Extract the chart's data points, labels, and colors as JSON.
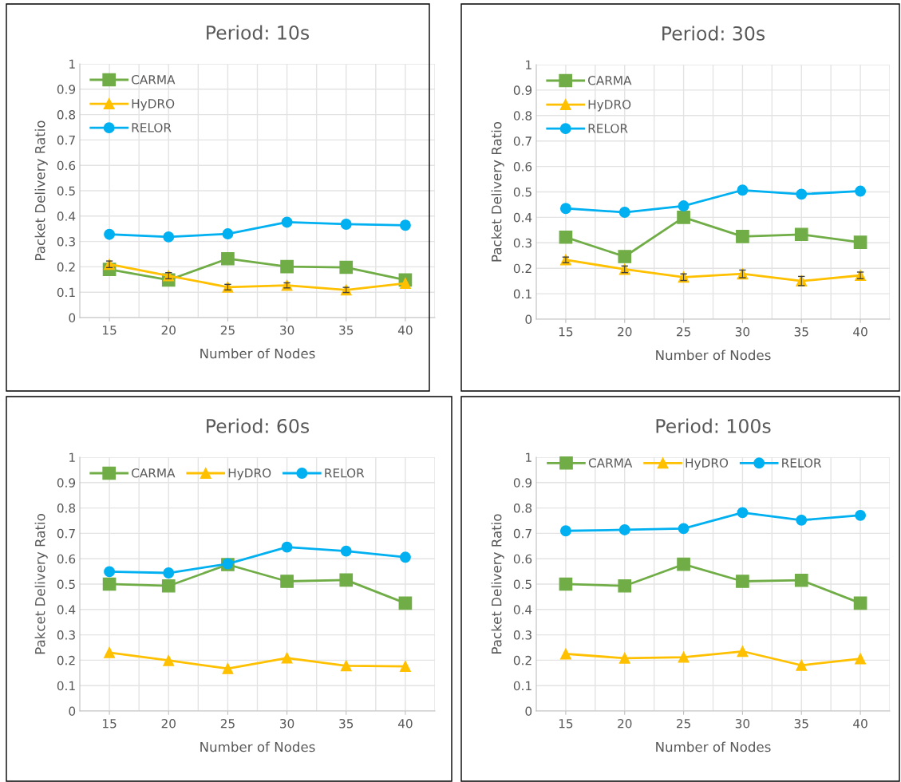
{
  "chart_data": [
    {
      "type": "line",
      "title": "Period: 10s",
      "xlabel": "Number of Nodes",
      "ylabel": "Packet Delivery Ratio",
      "categories": [
        "15",
        "20",
        "25",
        "30",
        "35",
        "40"
      ],
      "ylim": [
        0,
        1
      ],
      "yticks": [
        0,
        0.1,
        0.2,
        0.3,
        0.4,
        0.5,
        0.6,
        0.7,
        0.8,
        0.9,
        1
      ],
      "grid": true,
      "legend": "top left",
      "line_style": "solid",
      "series": [
        {
          "name": "CARMA",
          "color": "#70ad47",
          "marker": "square",
          "values": [
            0.19,
            0.148,
            0.232,
            0.201,
            0.198,
            0.148
          ]
        },
        {
          "name": "HyDRO",
          "color": "#ffc000",
          "marker": "triangle",
          "values": [
            0.21,
            0.165,
            0.12,
            0.127,
            0.109,
            0.135
          ],
          "errors": [
            0.013,
            0.012,
            0.011,
            0.01,
            0.01,
            null
          ]
        },
        {
          "name": "RELOR",
          "color": "#00b0f0",
          "marker": "circle",
          "values": [
            0.328,
            0.318,
            0.33,
            0.376,
            0.368,
            0.364
          ]
        }
      ]
    },
    {
      "type": "line",
      "title": "Period: 30s",
      "xlabel": "Number of Nodes",
      "ylabel": "Packet Delivery Ratio",
      "categories": [
        "15",
        "20",
        "25",
        "30",
        "35",
        "40"
      ],
      "ylim": [
        0,
        1
      ],
      "yticks": [
        0,
        0.1,
        0.2,
        0.3,
        0.4,
        0.5,
        0.6,
        0.7,
        0.8,
        0.9,
        1
      ],
      "grid": true,
      "legend": "top left",
      "line_style": "solid",
      "series": [
        {
          "name": "CARMA",
          "color": "#70ad47",
          "marker": "square",
          "values": [
            0.322,
            0.246,
            0.4,
            0.325,
            0.333,
            0.302
          ]
        },
        {
          "name": "HyDRO",
          "color": "#ffc000",
          "marker": "triangle",
          "values": [
            0.233,
            0.196,
            0.165,
            0.178,
            0.15,
            0.172
          ],
          "errors": [
            0.011,
            0.013,
            0.013,
            0.015,
            0.018,
            0.013
          ]
        },
        {
          "name": "RELOR",
          "color": "#00b0f0",
          "marker": "circle",
          "values": [
            0.435,
            0.42,
            0.445,
            0.507,
            0.491,
            0.503
          ]
        }
      ]
    },
    {
      "type": "line",
      "title": "Period: 60s",
      "xlabel": "Number of Nodes",
      "ylabel": "Pakcet Delivery Ratio",
      "categories": [
        "15",
        "20",
        "25",
        "30",
        "35",
        "40"
      ],
      "ylim": [
        0,
        1
      ],
      "yticks": [
        0,
        0.1,
        0.2,
        0.3,
        0.4,
        0.5,
        0.6,
        0.7,
        0.8,
        0.9,
        1
      ],
      "grid": true,
      "legend": "top left",
      "line_style": "solid",
      "series": [
        {
          "name": "CARMA",
          "color": "#70ad47",
          "marker": "square",
          "values": [
            0.5,
            0.493,
            0.577,
            0.511,
            0.516,
            0.425
          ]
        },
        {
          "name": "HyDRO",
          "color": "#ffc000",
          "marker": "triangle",
          "values": [
            0.23,
            0.199,
            0.167,
            0.209,
            0.178,
            0.176
          ]
        },
        {
          "name": "RELOR",
          "color": "#00b0f0",
          "marker": "circle",
          "values": [
            0.549,
            0.544,
            0.58,
            0.646,
            0.63,
            0.606
          ]
        }
      ]
    },
    {
      "type": "line",
      "title": "Period: 100s",
      "xlabel": "Number of Nodes",
      "ylabel": "Packet Delivery Ratio",
      "categories": [
        "15",
        "20",
        "25",
        "30",
        "35",
        "40"
      ],
      "ylim": [
        0,
        1
      ],
      "yticks": [
        0,
        0.1,
        0.2,
        0.3,
        0.4,
        0.5,
        0.6,
        0.7,
        0.8,
        0.9,
        1
      ],
      "grid": true,
      "legend": "top",
      "line_style": "solid",
      "series": [
        {
          "name": "CARMA",
          "color": "#70ad47",
          "marker": "square",
          "values": [
            0.5,
            0.493,
            0.578,
            0.511,
            0.515,
            0.425
          ]
        },
        {
          "name": "HyDRO",
          "color": "#ffc000",
          "marker": "triangle",
          "values": [
            0.225,
            0.208,
            0.212,
            0.235,
            0.18,
            0.206
          ]
        },
        {
          "name": "RELOR",
          "color": "#00b0f0",
          "marker": "circle",
          "values": [
            0.71,
            0.714,
            0.719,
            0.782,
            0.752,
            0.771
          ]
        }
      ]
    }
  ]
}
